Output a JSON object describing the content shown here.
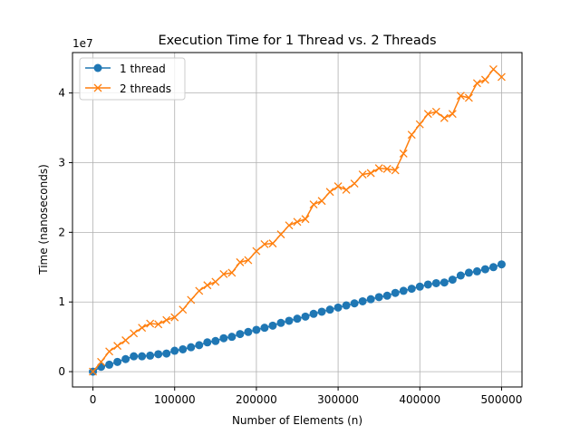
{
  "chart_data": {
    "type": "line",
    "title": "Execution Time for 1 Thread vs. 2 Threads",
    "xlabel": "Number of Elements (n)",
    "ylabel": "Time (nanoseconds)",
    "y_multiplier_label": "1e7",
    "y_scale_factor": 10000000,
    "xlim": [
      -25000,
      525000
    ],
    "ylim": [
      -2200000,
      45800000
    ],
    "x_ticks": [
      0,
      100000,
      200000,
      300000,
      400000,
      500000
    ],
    "x_tick_labels": [
      "0",
      "100000",
      "200000",
      "300000",
      "400000",
      "500000"
    ],
    "y_ticks": [
      0,
      10000000,
      20000000,
      30000000,
      40000000
    ],
    "y_tick_labels": [
      "0",
      "1",
      "2",
      "3",
      "4"
    ],
    "grid": true,
    "legend_position": "top-left",
    "x": [
      0,
      10000,
      20000,
      30000,
      40000,
      50000,
      60000,
      70000,
      80000,
      90000,
      100000,
      110000,
      120000,
      130000,
      140000,
      150000,
      160000,
      170000,
      180000,
      190000,
      200000,
      210000,
      220000,
      230000,
      240000,
      250000,
      260000,
      270000,
      280000,
      290000,
      300000,
      310000,
      320000,
      330000,
      340000,
      350000,
      360000,
      370000,
      380000,
      390000,
      400000,
      410000,
      420000,
      430000,
      440000,
      450000,
      460000,
      470000,
      480000,
      490000,
      500000
    ],
    "series": [
      {
        "name": "1 thread",
        "color": "#1f77b4",
        "marker": "circle",
        "values": [
          0,
          700000,
          1000000,
          1400000,
          1800000,
          2200000,
          2200000,
          2300000,
          2500000,
          2600000,
          3000000,
          3200000,
          3500000,
          3800000,
          4200000,
          4400000,
          4800000,
          5000000,
          5400000,
          5700000,
          6000000,
          6300000,
          6600000,
          7000000,
          7300000,
          7600000,
          7900000,
          8300000,
          8600000,
          8900000,
          9200000,
          9500000,
          9800000,
          10100000,
          10400000,
          10700000,
          10900000,
          11300000,
          11600000,
          11900000,
          12200000,
          12500000,
          12700000,
          12800000,
          13200000,
          13800000,
          14200000,
          14400000,
          14700000,
          15000000,
          15400000
        ]
      },
      {
        "name": "2 threads",
        "color": "#ff7f0e",
        "marker": "x",
        "values": [
          0,
          1400000,
          2900000,
          3700000,
          4500000,
          5500000,
          6300000,
          6900000,
          6800000,
          7400000,
          7800000,
          8900000,
          10300000,
          11600000,
          12400000,
          12900000,
          14000000,
          14200000,
          15700000,
          16000000,
          17300000,
          18300000,
          18400000,
          19700000,
          21000000,
          21500000,
          21900000,
          24000000,
          24500000,
          25800000,
          26600000,
          26100000,
          27000000,
          28300000,
          28500000,
          29200000,
          29100000,
          28900000,
          31300000,
          34000000,
          35500000,
          37000000,
          37300000,
          36400000,
          37000000,
          39600000,
          39300000,
          41400000,
          41900000,
          43400000,
          42300000
        ]
      }
    ]
  }
}
